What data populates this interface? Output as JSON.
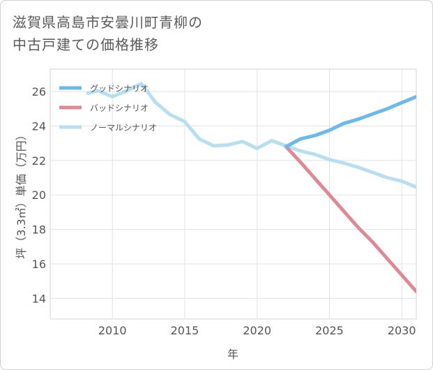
{
  "title_line1": "滋賀県高島市安曇川町青柳の",
  "title_line2": "中古戸建ての価格推移",
  "chart_data": {
    "type": "line",
    "xlabel": "年",
    "ylabel": "坪（3.3㎡）単価（万円）",
    "xlim": [
      2005.7,
      2031
    ],
    "ylim": [
      12.8,
      27.3
    ],
    "xticks": [
      2010,
      2015,
      2020,
      2025,
      2030
    ],
    "yticks": [
      14,
      16,
      18,
      20,
      22,
      24,
      26
    ],
    "grid": true,
    "legend_position": "top-left",
    "series": [
      {
        "name": "グッドシナリオ",
        "color": "#6cb9ec",
        "x": [
          2022,
          2023,
          2024,
          2025,
          2026,
          2027,
          2028,
          2029,
          2030,
          2031
        ],
        "y": [
          22.8,
          23.25,
          23.45,
          23.75,
          24.15,
          24.4,
          24.7,
          25.0,
          25.35,
          25.7
        ]
      },
      {
        "name": "バッドシナリオ",
        "color": "#de8a94",
        "x": [
          2022,
          2023,
          2024,
          2025,
          2026,
          2027,
          2028,
          2029,
          2030,
          2031
        ],
        "y": [
          22.8,
          21.9,
          20.95,
          20.0,
          19.05,
          18.1,
          17.25,
          16.3,
          15.35,
          14.4
        ]
      },
      {
        "name": "ノーマルシナリオ",
        "color": "#b8dff0",
        "x": [
          2008.3,
          2009,
          2010,
          2011,
          2012,
          2013,
          2014,
          2015,
          2016,
          2017,
          2018,
          2019,
          2020,
          2021,
          2022,
          2023,
          2024,
          2025,
          2026,
          2027,
          2028,
          2029,
          2030,
          2031
        ],
        "y": [
          25.9,
          26.05,
          25.7,
          26.05,
          26.45,
          25.35,
          24.65,
          24.25,
          23.25,
          22.85,
          22.9,
          23.1,
          22.7,
          23.15,
          22.85,
          22.55,
          22.35,
          22.05,
          21.85,
          21.6,
          21.3,
          21.0,
          20.8,
          20.45
        ]
      }
    ]
  }
}
